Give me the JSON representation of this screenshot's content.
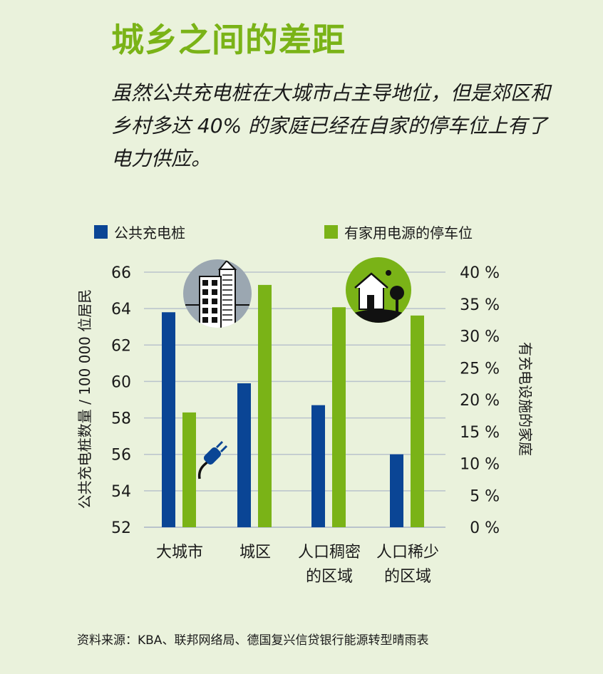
{
  "title": "城乡之间的差距",
  "subtitle": "虽然公共充电桩在大城市占主导地位，但是郊区和乡村多达 40% 的家庭已经在自家的停车位上有了电力供应。",
  "source": "资料来源：KBA、联邦网络局、德国复兴信贷银行能源转型晴雨表",
  "colors": {
    "title": "#7ab317",
    "public": "#0a4595",
    "home": "#7ab317",
    "background": "#eaf2dc"
  },
  "chart_data": {
    "type": "bar",
    "categories": [
      [
        "大城市"
      ],
      [
        "城区"
      ],
      [
        "人口稠密",
        "的区域"
      ],
      [
        "人口稀少",
        "的区域"
      ]
    ],
    "series": [
      {
        "name": "公共充电桩",
        "axis": "left",
        "values": [
          63.8,
          59.9,
          58.7,
          56.0
        ]
      },
      {
        "name": "有家用电源的停车位",
        "axis": "right",
        "values": [
          18,
          38,
          34.5,
          33.2
        ]
      }
    ],
    "ylabel": "公共充电桩数量 / 100 000 位居民",
    "ylabel_right": "有充电设施的家庭",
    "ylim": [
      52,
      66
    ],
    "ylim_right": [
      0,
      40
    ],
    "yticks": [
      "52",
      "54",
      "56",
      "58",
      "60",
      "62",
      "64",
      "66"
    ],
    "yticks_right": [
      "0 %",
      "5 %",
      "10 %",
      "15 %",
      "20 %",
      "25 %",
      "30 %",
      "35 %",
      "40 %"
    ],
    "legend_position": "top",
    "grid": true,
    "icons": [
      "city-building-icon",
      "house-tree-icon",
      "electric-plug-icon"
    ]
  }
}
